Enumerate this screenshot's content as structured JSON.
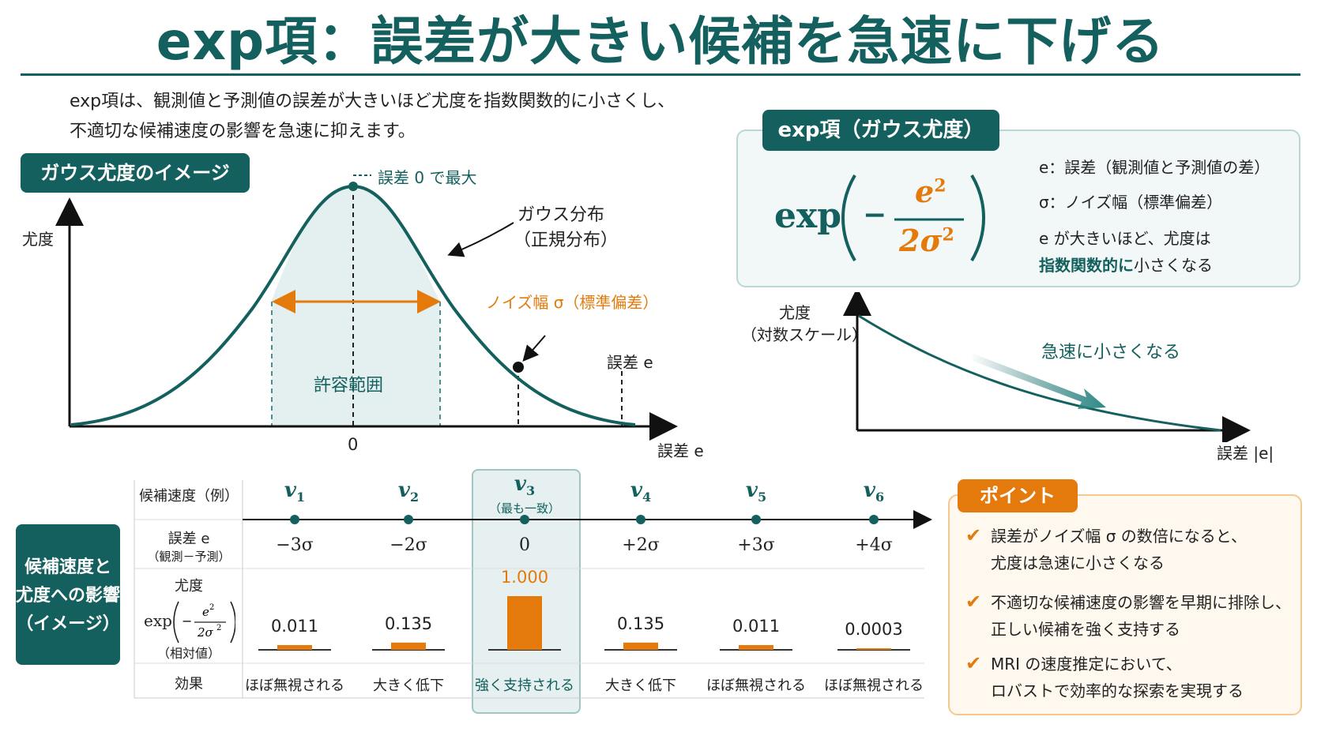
{
  "title": "exp項：誤差が大きい候補を急速に下げる",
  "intro": {
    "line1": "exp項は、観測値と予測値の誤差が大きいほど尤度を指数関数的に小さくし、",
    "line2": "不適切な候補速度の影響を急速に抑えます。"
  },
  "gauss_panel": {
    "tag": "ガウス尤度のイメージ",
    "ylabel": "尤度",
    "xlabel": "誤差 e",
    "zero_label": "0",
    "peak_label": "誤差 0 で最大",
    "dist_label_1": "ガウス分布",
    "dist_label_2": "（正規分布）",
    "noise_label": "ノイズ幅 σ（標準偏差）",
    "range_label": "許容範囲",
    "error_point_label": "誤差 e"
  },
  "formula_panel": {
    "tag": "exp項（ガウス尤度）",
    "formula_exp": "exp",
    "formula_minus": "−",
    "formula_num": "e",
    "formula_num_sup": "2",
    "formula_den": "2σ",
    "formula_den_sup": "2",
    "item_e": "e：誤差（観測値と予測値の差）",
    "item_sigma": "σ：ノイズ幅（標準偏差）",
    "item_note1": "e が大きいほど、尤度は",
    "item_note2_em": "指数関数的に",
    "item_note2_rest": "小さくなる"
  },
  "decay_panel": {
    "ylabel_1": "尤度",
    "ylabel_2": "（対数スケール）",
    "xlabel": "誤差 |e|",
    "arrow_label": "急速に小さくなる"
  },
  "table": {
    "side_tag_1": "候補速度と",
    "side_tag_2": "尤度への影響",
    "side_tag_3": "（イメージ）",
    "row_speed": "候補速度（例）",
    "row_error_1": "誤差 e",
    "row_error_2": "（観測－予測）",
    "row_like_1": "尤度",
    "row_like_exp": "exp",
    "row_like_3": "（相対値）",
    "row_effect": "効果",
    "best_note": "（最も一致）",
    "columns": [
      {
        "v": "v",
        "sub": "1",
        "error": "−3σ",
        "value": "0.011",
        "effect": "ほぼ無視される"
      },
      {
        "v": "v",
        "sub": "2",
        "error": "−2σ",
        "value": "0.135",
        "effect": "大きく低下"
      },
      {
        "v": "v",
        "sub": "3",
        "error": "0",
        "value": "1.000",
        "effect": "強く支持される"
      },
      {
        "v": "v",
        "sub": "4",
        "error": "+2σ",
        "value": "0.135",
        "effect": "大きく低下"
      },
      {
        "v": "v",
        "sub": "5",
        "error": "+3σ",
        "value": "0.011",
        "effect": "ほぼ無視される"
      },
      {
        "v": "v",
        "sub": "6",
        "error": "+4σ",
        "value": "0.0003",
        "effect": "ほぼ無視される"
      }
    ]
  },
  "chart_data": {
    "type": "bar",
    "categories": [
      "v1",
      "v2",
      "v3",
      "v4",
      "v5",
      "v6"
    ],
    "values": [
      0.011,
      0.135,
      1.0,
      0.135,
      0.011,
      0.0003
    ],
    "ylim": [
      0,
      1
    ]
  },
  "point_panel": {
    "tag": "ポイント",
    "p1_1": "誤差がノイズ幅 σ の数倍になると、",
    "p1_2": "尤度は急速に小さくなる",
    "p2_1": "不適切な候補速度の影響を早期に排除し、",
    "p2_2": "正しい候補を強く支持する",
    "p3_1": "MRI の速度推定において、",
    "p3_2": "ロバストで効率的な探索を実現する"
  },
  "colors": {
    "teal": "#13605e",
    "orange": "#e57a0c",
    "light_teal": "#e6f0f0",
    "light_orange": "#fff8ef"
  }
}
